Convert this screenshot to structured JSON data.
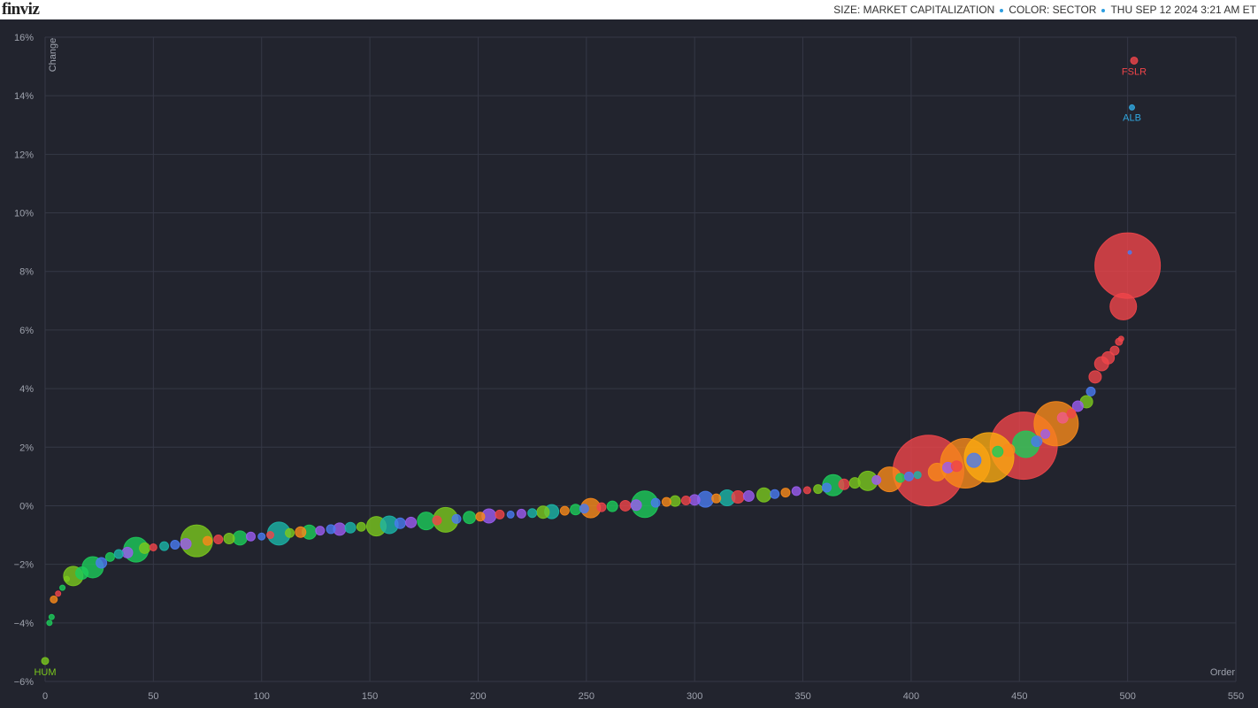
{
  "header": {
    "logo": "finviz",
    "size": "SIZE: MARKET CAPITALIZATION",
    "color": "COLOR: SECTOR",
    "date": "THU SEP 12 2024 3:21 AM ET"
  },
  "chart_data": {
    "type": "bubble",
    "x_label": "Order",
    "y_label": "Change",
    "grid": true,
    "xlim": [
      0,
      550
    ],
    "xticks": [
      0,
      50,
      100,
      150,
      200,
      250,
      300,
      350,
      400,
      450,
      500,
      550
    ],
    "ylim": [
      -6,
      16
    ],
    "yticks": [
      {
        "value": -6,
        "label": "−6%"
      },
      {
        "value": -4,
        "label": "−4%"
      },
      {
        "value": -2,
        "label": "−2%"
      },
      {
        "value": 0,
        "label": "0%"
      },
      {
        "value": 2,
        "label": "2%"
      },
      {
        "value": 4,
        "label": "4%"
      },
      {
        "value": 6,
        "label": "6%"
      },
      {
        "value": 8,
        "label": "8%"
      },
      {
        "value": 10,
        "label": "10%"
      },
      {
        "value": 12,
        "label": "12%"
      },
      {
        "value": 14,
        "label": "14%"
      },
      {
        "value": 16,
        "label": "16%"
      }
    ],
    "x": [
      0,
      2,
      3,
      4,
      6,
      8,
      10,
      13,
      17,
      22,
      26,
      30,
      34,
      38,
      42,
      46,
      50,
      55,
      60,
      65,
      70,
      75,
      80,
      85,
      90,
      95,
      100,
      104,
      108,
      113,
      118,
      122,
      127,
      132,
      136,
      141,
      146,
      153,
      159,
      164,
      169,
      176,
      181,
      185,
      190,
      196,
      201,
      205,
      210,
      215,
      220,
      225,
      230,
      234,
      240,
      245,
      249,
      252,
      257,
      262,
      268,
      273,
      277,
      282,
      287,
      291,
      296,
      300,
      305,
      310,
      315,
      320,
      325,
      332,
      337,
      342,
      347,
      352,
      357,
      361,
      364,
      369,
      374,
      380,
      384,
      390,
      395,
      399,
      403,
      408,
      412,
      417,
      421,
      425,
      429,
      436,
      440,
      445,
      452,
      453,
      458,
      462,
      467,
      470,
      474,
      477,
      481,
      483,
      485,
      488,
      491,
      494,
      496,
      497,
      498,
      500,
      501,
      502,
      503
    ],
    "values": [
      -5.3,
      -4.0,
      -3.8,
      -3.2,
      -3.0,
      -2.8,
      -2.5,
      -2.4,
      -2.3,
      -2.1,
      -1.95,
      -1.75,
      -1.65,
      -1.6,
      -1.5,
      -1.45,
      -1.42,
      -1.38,
      -1.33,
      -1.3,
      -1.2,
      -1.2,
      -1.15,
      -1.12,
      -1.1,
      -1.05,
      -1.05,
      -1.0,
      -0.95,
      -0.93,
      -0.9,
      -0.9,
      -0.85,
      -0.8,
      -0.8,
      -0.75,
      -0.72,
      -0.7,
      -0.65,
      -0.6,
      -0.57,
      -0.52,
      -0.5,
      -0.48,
      -0.45,
      -0.4,
      -0.37,
      -0.35,
      -0.3,
      -0.3,
      -0.27,
      -0.25,
      -0.22,
      -0.2,
      -0.17,
      -0.13,
      -0.1,
      -0.08,
      -0.05,
      -0.02,
      0.0,
      0.02,
      0.05,
      0.1,
      0.13,
      0.16,
      0.18,
      0.2,
      0.22,
      0.25,
      0.27,
      0.3,
      0.33,
      0.37,
      0.4,
      0.45,
      0.5,
      0.53,
      0.57,
      0.62,
      0.7,
      0.73,
      0.78,
      0.85,
      0.88,
      0.9,
      0.95,
      1.0,
      1.05,
      1.2,
      1.15,
      1.3,
      1.35,
      1.45,
      1.55,
      1.65,
      1.85,
      1.9,
      2.05,
      2.1,
      2.2,
      2.45,
      2.8,
      3.0,
      3.15,
      3.4,
      3.55,
      3.9,
      4.4,
      4.85,
      5.05,
      5.3,
      5.6,
      5.7,
      6.8,
      8.2,
      8.65,
      13.6,
      15.2
    ],
    "sizes": [
      4,
      3,
      3,
      4,
      3,
      3,
      3,
      11,
      7,
      12,
      6,
      5,
      5,
      6,
      14,
      6,
      4,
      5,
      5,
      6,
      18,
      5,
      5,
      6,
      8,
      5,
      4,
      4,
      13,
      5,
      6,
      8,
      5,
      5,
      7,
      6,
      5,
      11,
      10,
      6,
      6,
      10,
      5,
      14,
      5,
      7,
      5,
      8,
      5,
      4,
      5,
      5,
      7,
      8,
      5,
      6,
      5,
      11,
      5,
      6,
      6,
      6,
      15,
      5,
      5,
      6,
      5,
      6,
      9,
      5,
      9,
      7,
      6,
      8,
      5,
      5,
      5,
      4,
      5,
      5,
      12,
      6,
      6,
      11,
      5,
      14,
      5,
      5,
      4,
      40,
      10,
      6,
      6,
      28,
      8,
      28,
      6,
      7,
      38,
      15,
      6,
      5,
      25,
      6,
      5,
      6,
      7,
      5,
      7,
      8,
      7,
      5,
      4,
      3,
      15,
      37,
      2,
      3,
      4
    ],
    "colors": [
      "#7bc81e",
      "#1dcc5a",
      "#1dcc5a",
      "#f98a1a",
      "#f0454a",
      "#1dcc5a",
      "#7bc81e",
      "#7bc81e",
      "#1dcc5a",
      "#1dcc5a",
      "#4a7bf0",
      "#1dcc5a",
      "#1bb5a8",
      "#9b5cf0",
      "#1dcc5a",
      "#7bc81e",
      "#f0454a",
      "#1bb5a8",
      "#4a7bf0",
      "#9b5cf0",
      "#7bc81e",
      "#f98a1a",
      "#f0454a",
      "#7bc81e",
      "#1dcc5a",
      "#9b5cf0",
      "#4a7bf0",
      "#f0454a",
      "#1bb5a8",
      "#7bc81e",
      "#f98a1a",
      "#1dcc5a",
      "#9b5cf0",
      "#4a7bf0",
      "#9b5cf0",
      "#1bb5a8",
      "#7bc81e",
      "#7bc81e",
      "#1bb5a8",
      "#4a7bf0",
      "#9b5cf0",
      "#1dcc5a",
      "#f0454a",
      "#7bc81e",
      "#4a7bf0",
      "#1dcc5a",
      "#f98a1a",
      "#9b5cf0",
      "#f0454a",
      "#4a7bf0",
      "#9b5cf0",
      "#1bb5a8",
      "#7bc81e",
      "#1bb5a8",
      "#f98a1a",
      "#1dcc5a",
      "#4a7bf0",
      "#f98a1a",
      "#f0454a",
      "#1dcc5a",
      "#f0454a",
      "#9b5cf0",
      "#1dcc5a",
      "#4a7bf0",
      "#f98a1a",
      "#7bc81e",
      "#f0454a",
      "#9b5cf0",
      "#4a7bf0",
      "#f98a1a",
      "#1bb5a8",
      "#f0454a",
      "#9b5cf0",
      "#7bc81e",
      "#4a7bf0",
      "#f98a1a",
      "#9b5cf0",
      "#f0454a",
      "#7bc81e",
      "#4a7bf0",
      "#1dcc5a",
      "#f0454a",
      "#7bc81e",
      "#7bc81e",
      "#9b5cf0",
      "#f98a1a",
      "#1dcc5a",
      "#4a7bf0",
      "#1bb5a8",
      "#f0454a",
      "#f98a1a",
      "#9b5cf0",
      "#f0454a",
      "#f98a1a",
      "#4a7bf0",
      "#fbaa10",
      "#1dcc5a",
      "#f98a1a",
      "#f0454a",
      "#1dcc5a",
      "#4a7bf0",
      "#9b5cf0",
      "#f98a1a",
      "#f05b8a",
      "#f0454a",
      "#9b5cf0",
      "#7bc81e",
      "#4a7bf0",
      "#f0454a",
      "#f0454a",
      "#f0454a",
      "#f0454a",
      "#f0454a",
      "#f0454a",
      "#f0454a",
      "#f0454a",
      "#4a7bf0",
      "#31a8e0",
      "#f0454a"
    ],
    "point_labels": [
      "HUM",
      null,
      null,
      null,
      null,
      null,
      null,
      null,
      null,
      null,
      null,
      null,
      null,
      null,
      null,
      null,
      null,
      null,
      null,
      null,
      null,
      null,
      null,
      null,
      null,
      null,
      null,
      null,
      null,
      null,
      null,
      null,
      null,
      null,
      null,
      null,
      null,
      null,
      null,
      null,
      null,
      null,
      null,
      null,
      null,
      null,
      null,
      null,
      null,
      null,
      null,
      null,
      null,
      null,
      null,
      null,
      null,
      null,
      null,
      null,
      null,
      null,
      null,
      null,
      null,
      null,
      null,
      null,
      null,
      null,
      null,
      null,
      null,
      null,
      null,
      null,
      null,
      null,
      null,
      null,
      null,
      null,
      null,
      null,
      null,
      null,
      null,
      null,
      null,
      null,
      null,
      null,
      null,
      null,
      null,
      null,
      null,
      null,
      null,
      null,
      null,
      null,
      null,
      null,
      null,
      null,
      null,
      null,
      null,
      null,
      null,
      null,
      null,
      null,
      null,
      null,
      null,
      "ALB",
      "FSLR"
    ]
  }
}
